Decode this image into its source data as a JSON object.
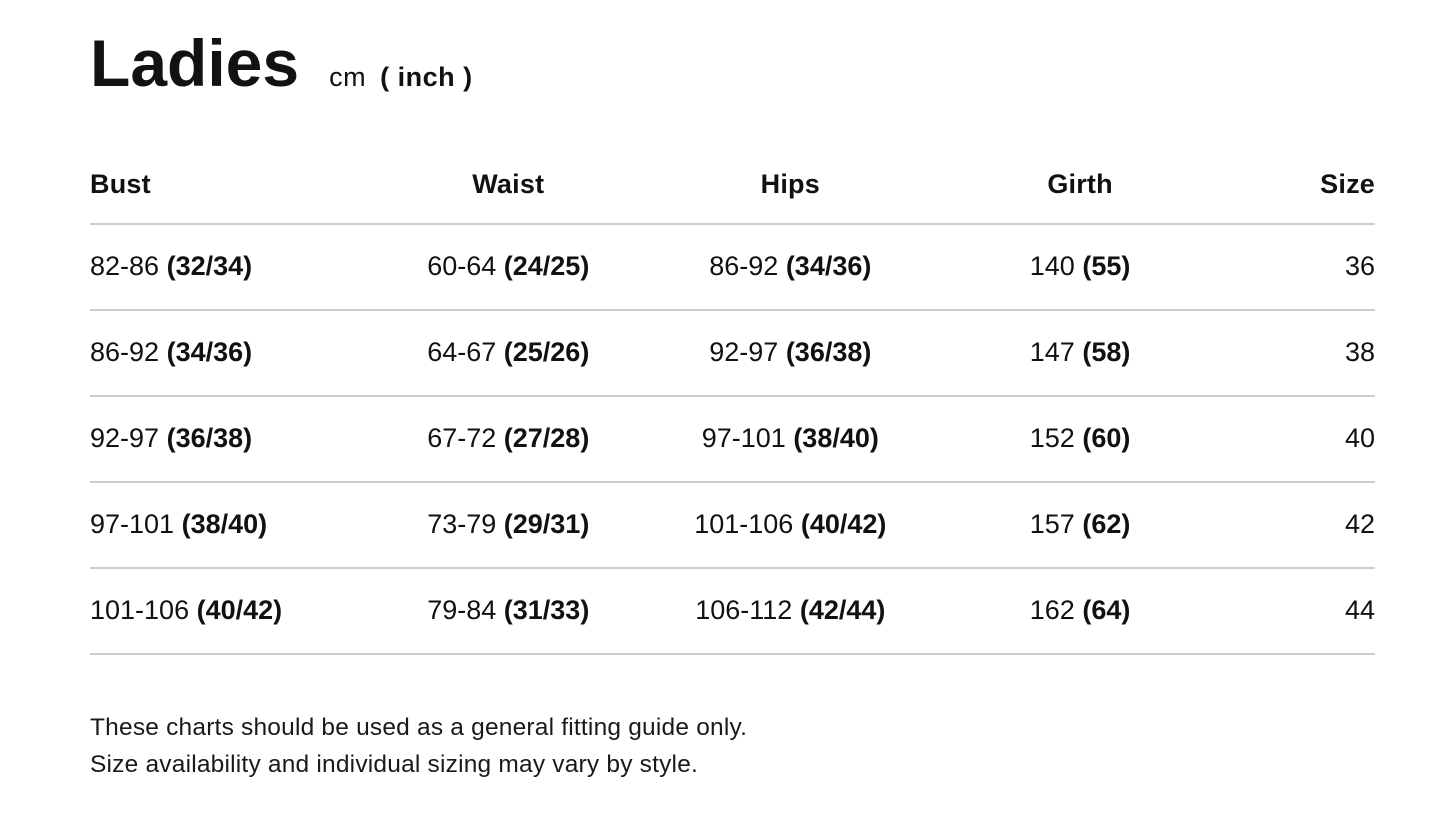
{
  "title": "Ladies",
  "units": {
    "primary": "cm",
    "secondary": "( inch )"
  },
  "table": {
    "columns": [
      "Bust",
      "Waist",
      "Hips",
      "Girth",
      "Size"
    ],
    "rows": [
      {
        "bust": {
          "cm": "82-86",
          "inch": "(32/34)"
        },
        "waist": {
          "cm": "60-64",
          "inch": "(24/25)"
        },
        "hips": {
          "cm": "86-92",
          "inch": "(34/36)"
        },
        "girth": {
          "cm": "140",
          "inch": "(55)"
        },
        "size": "36"
      },
      {
        "bust": {
          "cm": "86-92",
          "inch": "(34/36)"
        },
        "waist": {
          "cm": "64-67",
          "inch": "(25/26)"
        },
        "hips": {
          "cm": "92-97",
          "inch": "(36/38)"
        },
        "girth": {
          "cm": "147",
          "inch": "(58)"
        },
        "size": "38"
      },
      {
        "bust": {
          "cm": "92-97",
          "inch": "(36/38)"
        },
        "waist": {
          "cm": "67-72",
          "inch": "(27/28)"
        },
        "hips": {
          "cm": "97-101",
          "inch": "(38/40)"
        },
        "girth": {
          "cm": "152",
          "inch": "(60)"
        },
        "size": "40"
      },
      {
        "bust": {
          "cm": "97-101",
          "inch": "(38/40)"
        },
        "waist": {
          "cm": "73-79",
          "inch": "(29/31)"
        },
        "hips": {
          "cm": "101-106",
          "inch": "(40/42)"
        },
        "girth": {
          "cm": "157",
          "inch": "(62)"
        },
        "size": "42"
      },
      {
        "bust": {
          "cm": "101-106",
          "inch": "(40/42)"
        },
        "waist": {
          "cm": "79-84",
          "inch": "(31/33)"
        },
        "hips": {
          "cm": "106-112",
          "inch": "(42/44)"
        },
        "girth": {
          "cm": "162",
          "inch": "(64)"
        },
        "size": "44"
      }
    ]
  },
  "footer": {
    "line1": "These charts should be used as a general fitting guide only.",
    "line2": "Size availability and individual sizing may vary by style."
  },
  "colors": {
    "text": "#111111",
    "divider": "#cccccc",
    "background": "#ffffff"
  }
}
